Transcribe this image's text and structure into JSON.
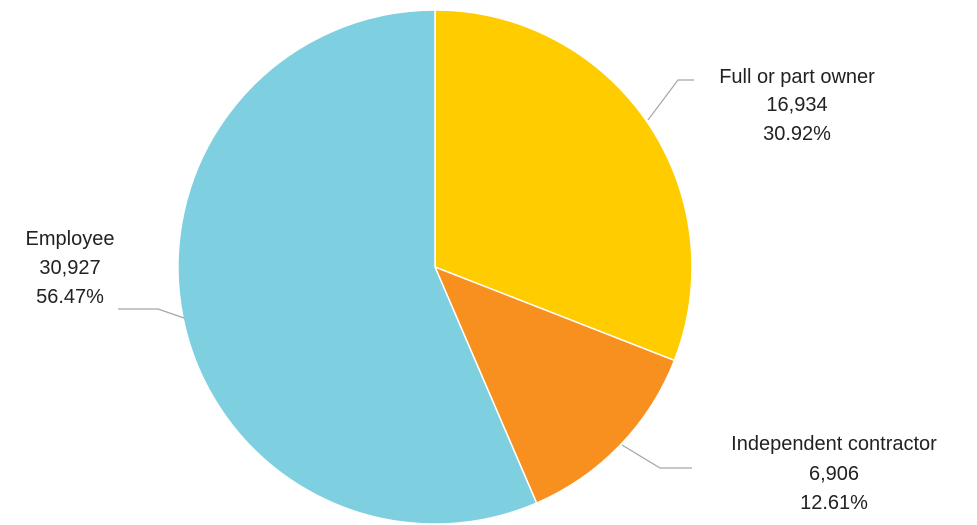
{
  "chart_data": {
    "type": "pie",
    "slices": [
      {
        "label": "Full or part owner",
        "value": 16934,
        "value_text": "16,934",
        "percent_text": "30.92%",
        "color": "#FFCC00"
      },
      {
        "label": "Independent contractor",
        "value": 6906,
        "value_text": "6,906",
        "percent_text": "12.61%",
        "color": "#F7901E"
      },
      {
        "label": "Employee",
        "value": 30927,
        "value_text": "30,927",
        "percent_text": "56.47%",
        "color": "#7ECFE0"
      }
    ],
    "legend": "none"
  }
}
